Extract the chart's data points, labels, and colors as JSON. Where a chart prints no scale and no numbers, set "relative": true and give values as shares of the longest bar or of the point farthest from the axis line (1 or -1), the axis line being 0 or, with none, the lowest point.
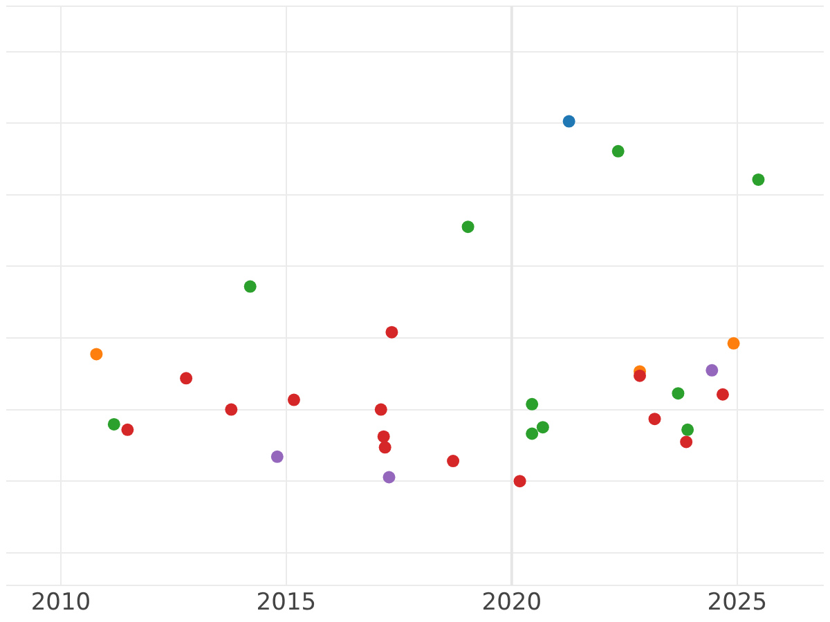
{
  "chart_data": {
    "type": "scatter",
    "relative": true,
    "xlim": [
      2008.79,
      2026.92
    ],
    "xticks": [
      2010,
      2015,
      2020,
      2025
    ],
    "grid": true,
    "marker": "circle",
    "legend": false,
    "ref_lines": [
      {
        "axis": "x",
        "value": 2020,
        "color": "#e6e6e6"
      }
    ],
    "series": [
      {
        "color": "#1f77b4",
        "x": [
          2021.27
        ],
        "values": [
          1
        ]
      },
      {
        "color": "#ff7f0e",
        "x": [
          2010.79,
          2022.84,
          2024.92
        ],
        "values": [
          0.353,
          0.305,
          0.383
        ]
      },
      {
        "color": "#2ca02c",
        "x": [
          2022.36,
          2025.47,
          2019.03,
          2014.2,
          2011.18,
          2020.45,
          2020.45,
          2020.69,
          2023.69,
          2023.9
        ],
        "values": [
          0.917,
          0.838,
          0.707,
          0.541,
          0.158,
          0.214,
          0.132,
          0.15,
          0.244,
          0.143
        ]
      },
      {
        "color": "#d62728",
        "x": [
          2017.34,
          2012.78,
          2013.78,
          2015.17,
          2011.48,
          2017.1,
          2017.16,
          2017.19,
          2018.7,
          2020.18,
          2022.84,
          2023.17,
          2023.87,
          2024.68
        ],
        "values": [
          0.414,
          0.286,
          0.199,
          0.226,
          0.143,
          0.199,
          0.124,
          0.094,
          0.056,
          0,
          0.293,
          0.173,
          0.109,
          0.241
        ]
      },
      {
        "color": "#9467bd",
        "x": [
          2014.8,
          2017.28,
          2024.44
        ],
        "values": [
          0.068,
          0.011,
          0.308
        ]
      }
    ]
  }
}
